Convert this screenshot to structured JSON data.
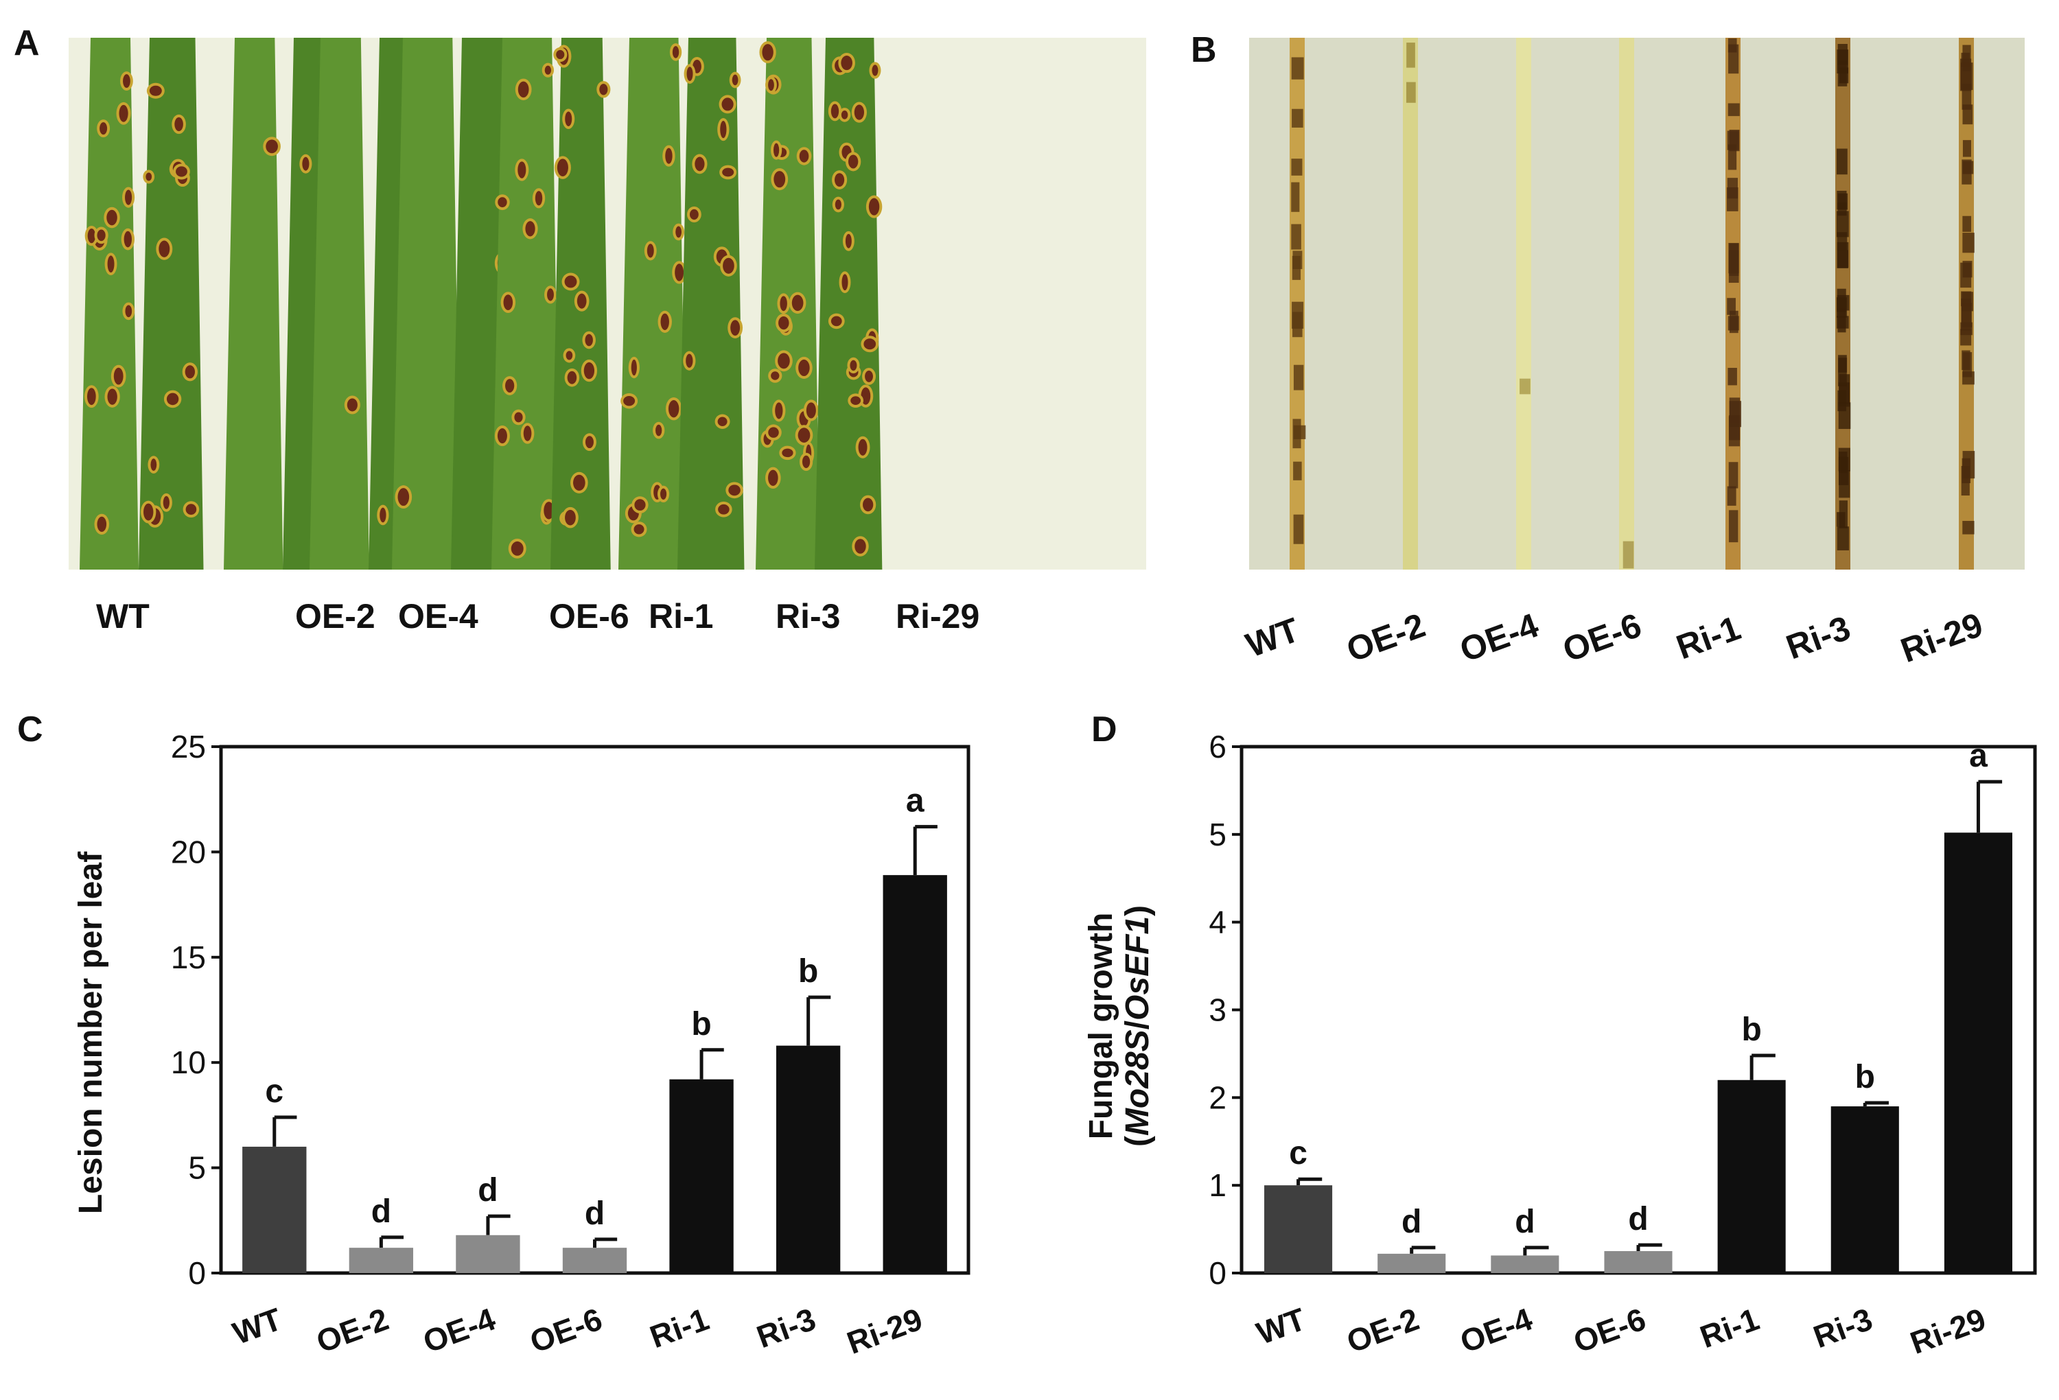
{
  "panels": {
    "a": {
      "label": "A"
    },
    "b": {
      "label": "B"
    },
    "c": {
      "label": "C"
    },
    "d": {
      "label": "D"
    }
  },
  "colors": {
    "wt_bar": "#3f3f3f",
    "oe_bar": "#8a8a8a",
    "ri_bar": "#0f0f0f",
    "leaf_green": "#5c8f2e",
    "leaf_background": "#eef0df",
    "sheath_background": "#d9dbc6",
    "lesion": "#6b2a18",
    "lesion_halo": "#c9a531"
  },
  "photo_a": {
    "strains": [
      "WT",
      "OE-2",
      "OE-4",
      "OE-6",
      "Ri-1",
      "Ri-3",
      "Ri-29"
    ],
    "lesions_per_leaf": [
      "many",
      "few",
      "few",
      "few",
      "many",
      "many",
      "very many"
    ]
  },
  "photo_b": {
    "strains": [
      "WT",
      "OE-2",
      "OE-4",
      "OE-6",
      "Ri-1",
      "Ri-3",
      "Ri-29"
    ]
  },
  "chart_data": [
    {
      "type": "bar",
      "panel": "C",
      "categories": [
        "WT",
        "OE-2",
        "OE-4",
        "OE-6",
        "Ri-1",
        "Ri-3",
        "Ri-29"
      ],
      "values": [
        6.0,
        1.2,
        1.8,
        1.2,
        9.2,
        10.8,
        18.9
      ],
      "errors": [
        1.4,
        0.5,
        0.9,
        0.4,
        1.4,
        2.3,
        2.3
      ],
      "significance": [
        "c",
        "d",
        "d",
        "d",
        "b",
        "b",
        "a"
      ],
      "bar_colors": [
        "wt_bar",
        "oe_bar",
        "oe_bar",
        "oe_bar",
        "ri_bar",
        "ri_bar",
        "ri_bar"
      ],
      "ylabel": "Lesion number per leaf",
      "ylim": [
        0,
        25
      ],
      "yticks": [
        "0",
        "5",
        "10",
        "15",
        "20",
        "25"
      ],
      "grid": false
    },
    {
      "type": "bar",
      "panel": "D",
      "categories": [
        "WT",
        "OE-2",
        "OE-4",
        "OE-6",
        "Ri-1",
        "Ri-3",
        "Ri-29"
      ],
      "values": [
        1.0,
        0.22,
        0.2,
        0.25,
        2.2,
        1.9,
        5.02
      ],
      "errors": [
        0.07,
        0.07,
        0.09,
        0.07,
        0.28,
        0.04,
        0.58
      ],
      "significance": [
        "c",
        "d",
        "d",
        "d",
        "b",
        "b",
        "a"
      ],
      "bar_colors": [
        "wt_bar",
        "oe_bar",
        "oe_bar",
        "oe_bar",
        "ri_bar",
        "ri_bar",
        "ri_bar"
      ],
      "ylabel_line1": "Fungal growth",
      "ylabel_line2_open": "(",
      "ylabel_line2_gene1": "Mo28S",
      "ylabel_line2_sep": "/",
      "ylabel_line2_gene2": "OsEF1",
      "ylabel_line2_close": ")",
      "ylim": [
        0,
        6
      ],
      "yticks": [
        "0",
        "1",
        "2",
        "3",
        "4",
        "5",
        "6"
      ],
      "grid": false
    }
  ]
}
